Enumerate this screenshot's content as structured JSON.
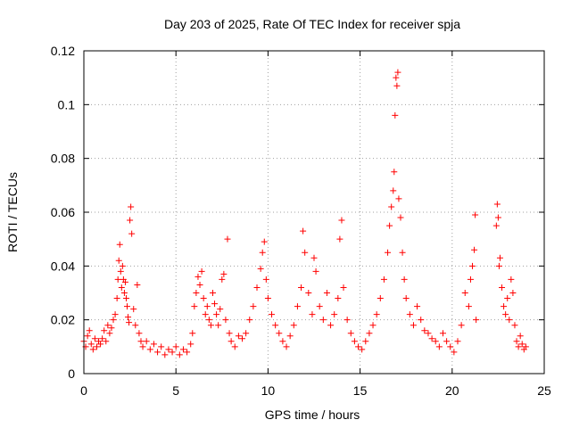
{
  "chart_data": {
    "type": "scatter",
    "title": "Day 203 of 2025, Rate Of TEC Index for receiver spja",
    "xlabel": "GPS time / hours",
    "ylabel": "ROTI / TECUs",
    "xlim": [
      0,
      25
    ],
    "ylim": [
      0,
      0.12
    ],
    "xticks": [
      0,
      5,
      10,
      15,
      20,
      25
    ],
    "xtick_labels": [
      "0",
      "5",
      "10",
      "15",
      "20",
      "25"
    ],
    "yticks": [
      0,
      0.02,
      0.04,
      0.06,
      0.08,
      0.1,
      0.12
    ],
    "ytick_labels": [
      "0",
      "0.02",
      "0.04",
      "0.06",
      "0.08",
      "0.1",
      "0.12"
    ],
    "grid": true,
    "marker": "plus",
    "color": "#ff0000",
    "series": [
      {
        "points": [
          [
            0.0,
            0.012
          ],
          [
            0.1,
            0.01
          ],
          [
            0.2,
            0.014
          ],
          [
            0.3,
            0.016
          ],
          [
            0.4,
            0.011
          ],
          [
            0.5,
            0.009
          ],
          [
            0.6,
            0.013
          ],
          [
            0.7,
            0.01
          ],
          [
            0.8,
            0.012
          ],
          [
            0.9,
            0.011
          ],
          [
            1.0,
            0.013
          ],
          [
            1.1,
            0.016
          ],
          [
            1.2,
            0.012
          ],
          [
            1.3,
            0.018
          ],
          [
            1.4,
            0.015
          ],
          [
            1.5,
            0.017
          ],
          [
            1.6,
            0.02
          ],
          [
            1.7,
            0.022
          ],
          [
            1.8,
            0.028
          ],
          [
            1.85,
            0.035
          ],
          [
            1.9,
            0.042
          ],
          [
            1.95,
            0.048
          ],
          [
            2.0,
            0.038
          ],
          [
            2.05,
            0.032
          ],
          [
            2.1,
            0.04
          ],
          [
            2.15,
            0.035
          ],
          [
            2.2,
            0.03
          ],
          [
            2.25,
            0.034
          ],
          [
            2.3,
            0.028
          ],
          [
            2.35,
            0.025
          ],
          [
            2.4,
            0.021
          ],
          [
            2.45,
            0.019
          ],
          [
            2.5,
            0.057
          ],
          [
            2.55,
            0.062
          ],
          [
            2.6,
            0.052
          ],
          [
            2.7,
            0.024
          ],
          [
            2.8,
            0.018
          ],
          [
            2.9,
            0.033
          ],
          [
            3.0,
            0.015
          ],
          [
            3.1,
            0.012
          ],
          [
            3.2,
            0.01
          ],
          [
            3.4,
            0.012
          ],
          [
            3.6,
            0.009
          ],
          [
            3.8,
            0.011
          ],
          [
            4.0,
            0.008
          ],
          [
            4.2,
            0.01
          ],
          [
            4.4,
            0.007
          ],
          [
            4.6,
            0.009
          ],
          [
            4.8,
            0.008
          ],
          [
            5.0,
            0.01
          ],
          [
            5.2,
            0.007
          ],
          [
            5.4,
            0.009
          ],
          [
            5.6,
            0.008
          ],
          [
            5.8,
            0.011
          ],
          [
            5.9,
            0.015
          ],
          [
            6.0,
            0.025
          ],
          [
            6.1,
            0.03
          ],
          [
            6.2,
            0.036
          ],
          [
            6.3,
            0.033
          ],
          [
            6.4,
            0.038
          ],
          [
            6.5,
            0.028
          ],
          [
            6.6,
            0.022
          ],
          [
            6.7,
            0.025
          ],
          [
            6.8,
            0.02
          ],
          [
            6.9,
            0.018
          ],
          [
            7.0,
            0.03
          ],
          [
            7.1,
            0.026
          ],
          [
            7.2,
            0.022
          ],
          [
            7.3,
            0.018
          ],
          [
            7.4,
            0.024
          ],
          [
            7.5,
            0.035
          ],
          [
            7.6,
            0.037
          ],
          [
            7.7,
            0.02
          ],
          [
            7.8,
            0.05
          ],
          [
            7.9,
            0.015
          ],
          [
            8.0,
            0.012
          ],
          [
            8.2,
            0.01
          ],
          [
            8.4,
            0.014
          ],
          [
            8.6,
            0.013
          ],
          [
            8.8,
            0.015
          ],
          [
            9.0,
            0.02
          ],
          [
            9.2,
            0.025
          ],
          [
            9.4,
            0.032
          ],
          [
            9.6,
            0.039
          ],
          [
            9.7,
            0.045
          ],
          [
            9.8,
            0.049
          ],
          [
            9.9,
            0.035
          ],
          [
            10.0,
            0.028
          ],
          [
            10.2,
            0.022
          ],
          [
            10.4,
            0.018
          ],
          [
            10.6,
            0.015
          ],
          [
            10.8,
            0.012
          ],
          [
            11.0,
            0.01
          ],
          [
            11.2,
            0.014
          ],
          [
            11.4,
            0.018
          ],
          [
            11.6,
            0.025
          ],
          [
            11.8,
            0.032
          ],
          [
            11.9,
            0.053
          ],
          [
            12.0,
            0.045
          ],
          [
            12.2,
            0.03
          ],
          [
            12.4,
            0.022
          ],
          [
            12.5,
            0.043
          ],
          [
            12.6,
            0.038
          ],
          [
            12.8,
            0.025
          ],
          [
            13.0,
            0.02
          ],
          [
            13.2,
            0.03
          ],
          [
            13.4,
            0.018
          ],
          [
            13.6,
            0.022
          ],
          [
            13.8,
            0.028
          ],
          [
            13.9,
            0.05
          ],
          [
            14.0,
            0.057
          ],
          [
            14.1,
            0.032
          ],
          [
            14.3,
            0.02
          ],
          [
            14.5,
            0.015
          ],
          [
            14.7,
            0.012
          ],
          [
            14.9,
            0.01
          ],
          [
            15.1,
            0.009
          ],
          [
            15.3,
            0.012
          ],
          [
            15.5,
            0.015
          ],
          [
            15.7,
            0.018
          ],
          [
            15.9,
            0.022
          ],
          [
            16.1,
            0.028
          ],
          [
            16.3,
            0.035
          ],
          [
            16.5,
            0.045
          ],
          [
            16.6,
            0.055
          ],
          [
            16.7,
            0.062
          ],
          [
            16.8,
            0.068
          ],
          [
            16.85,
            0.075
          ],
          [
            16.9,
            0.096
          ],
          [
            16.95,
            0.11
          ],
          [
            17.0,
            0.107
          ],
          [
            17.05,
            0.112
          ],
          [
            17.1,
            0.065
          ],
          [
            17.2,
            0.058
          ],
          [
            17.3,
            0.045
          ],
          [
            17.4,
            0.035
          ],
          [
            17.5,
            0.028
          ],
          [
            17.7,
            0.022
          ],
          [
            17.9,
            0.018
          ],
          [
            18.1,
            0.025
          ],
          [
            18.3,
            0.02
          ],
          [
            18.5,
            0.016
          ],
          [
            18.7,
            0.015
          ],
          [
            18.9,
            0.013
          ],
          [
            19.1,
            0.012
          ],
          [
            19.3,
            0.01
          ],
          [
            19.5,
            0.015
          ],
          [
            19.7,
            0.012
          ],
          [
            19.9,
            0.01
          ],
          [
            20.1,
            0.008
          ],
          [
            20.3,
            0.012
          ],
          [
            20.5,
            0.018
          ],
          [
            20.7,
            0.03
          ],
          [
            20.9,
            0.025
          ],
          [
            21.0,
            0.035
          ],
          [
            21.1,
            0.04
          ],
          [
            21.2,
            0.046
          ],
          [
            21.25,
            0.059
          ],
          [
            21.3,
            0.02
          ],
          [
            22.4,
            0.055
          ],
          [
            22.45,
            0.063
          ],
          [
            22.5,
            0.058
          ],
          [
            22.55,
            0.04
          ],
          [
            22.6,
            0.043
          ],
          [
            22.7,
            0.032
          ],
          [
            22.8,
            0.025
          ],
          [
            22.9,
            0.022
          ],
          [
            23.0,
            0.028
          ],
          [
            23.1,
            0.02
          ],
          [
            23.2,
            0.035
          ],
          [
            23.3,
            0.03
          ],
          [
            23.4,
            0.018
          ],
          [
            23.5,
            0.012
          ],
          [
            23.6,
            0.01
          ],
          [
            23.7,
            0.014
          ],
          [
            23.8,
            0.011
          ],
          [
            23.9,
            0.009
          ],
          [
            24.0,
            0.01
          ]
        ]
      }
    ]
  }
}
